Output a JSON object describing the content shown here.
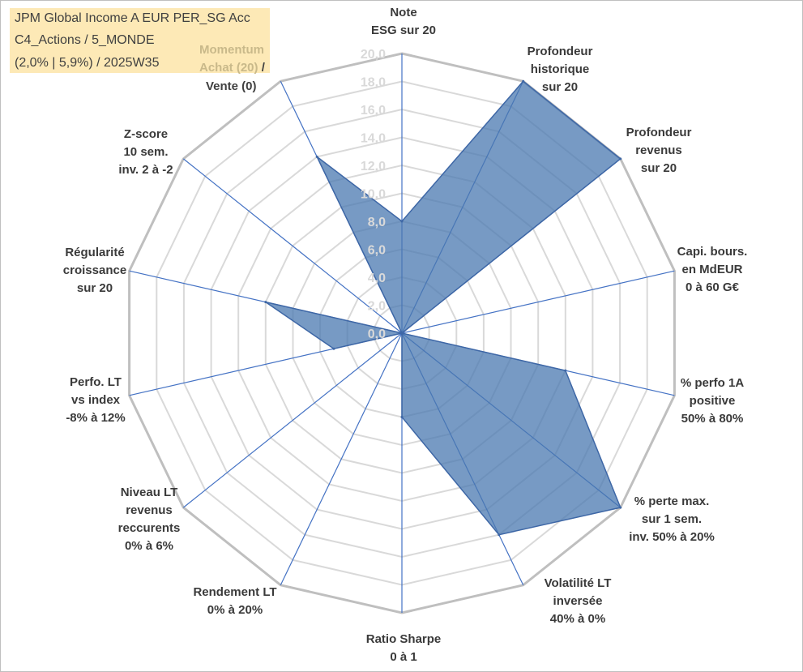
{
  "title": {
    "line1": "JPM Global Income A EUR PER_SG Acc",
    "line2": "C4_Actions / 5_MONDE",
    "line3": "(2,0% | 5,9%) / 2025W35"
  },
  "momentum": {
    "part1": "Momentum",
    "part2": "Achat (20)",
    "part3": " /",
    "part4": "Vente (0)",
    "color_accent": "#c9b98a",
    "color_text": "#404040"
  },
  "colors": {
    "fill": "#4a78b0",
    "stroke": "#3e67a6",
    "spoke": "#4472c4",
    "grid": "#d9d9d9",
    "outer": "#bfbfbf",
    "title_bg": "#fde9b6"
  },
  "chart_data": {
    "type": "radar",
    "ylim": [
      0,
      20
    ],
    "ticks": [
      "0,0",
      "2,0",
      "4,0",
      "6,0",
      "8,0",
      "10,0",
      "12,0",
      "14,0",
      "16,0",
      "18,0",
      "20,0"
    ],
    "grid": true,
    "categories": [
      [
        "Note",
        "ESG sur 20"
      ],
      [
        "Profondeur",
        "historique",
        "sur 20"
      ],
      [
        "Profondeur",
        "revenus",
        "sur 20"
      ],
      [
        "Capi. bours.",
        "en MdEUR",
        "0 à 60 G€"
      ],
      [
        "% perfo 1A",
        "positive",
        "50% à 80%"
      ],
      [
        "% perte max.",
        "sur 1 sem.",
        "inv. 50% à 20%"
      ],
      [
        "Volatilité LT",
        "inversée",
        "40% à 0%"
      ],
      [
        "Ratio Sharpe",
        "0 à 1"
      ],
      [
        "Rendement LT",
        "0% à 20%"
      ],
      [
        "Niveau LT",
        "revenus",
        "reccurents",
        "0% à 6%"
      ],
      [
        "Perfo. LT",
        "vs index",
        "-8% à 12%"
      ],
      [
        "Régularité",
        "croissance",
        "sur 20"
      ],
      [
        "Z-score",
        "10 sem.",
        "inv. 2 à -2"
      ],
      [
        "Momentum Achat (20) / Vente (0)"
      ]
    ],
    "values": [
      8,
      20,
      20,
      0,
      12,
      20,
      16,
      6,
      0,
      0,
      5,
      10,
      0,
      14
    ]
  }
}
